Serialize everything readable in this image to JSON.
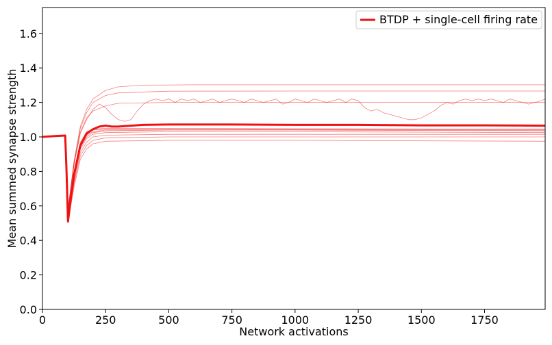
{
  "chart_data": {
    "type": "line",
    "xlabel": "Network activations",
    "ylabel": "Mean summed synapse strength",
    "xlim": [
      0,
      1990
    ],
    "ylim": [
      0.0,
      1.75
    ],
    "xticks": [
      0,
      250,
      500,
      750,
      1000,
      1250,
      1500,
      1750
    ],
    "xtick_labels": [
      "0",
      "250",
      "500",
      "750",
      "1000",
      "1250",
      "1500",
      "1750"
    ],
    "yticks": [
      0.0,
      0.2,
      0.4,
      0.6,
      0.8,
      1.0,
      1.2,
      1.4,
      1.6
    ],
    "ytick_labels": [
      "0.0",
      "0.2",
      "0.4",
      "0.6",
      "0.8",
      "1.0",
      "1.2",
      "1.4",
      "1.6"
    ],
    "grid": false,
    "legend": {
      "position": "top-right",
      "entries": [
        "BTDP + single-cell firing rate"
      ]
    },
    "color": "#ee1111",
    "series": [
      {
        "name": "BTDP + single-cell firing rate",
        "role": "mean",
        "points": [
          [
            0,
            1.0
          ],
          [
            50,
            1.005
          ],
          [
            90,
            1.008
          ],
          [
            95,
            0.82
          ],
          [
            101,
            0.51
          ],
          [
            110,
            0.62
          ],
          [
            125,
            0.78
          ],
          [
            150,
            0.95
          ],
          [
            175,
            1.02
          ],
          [
            200,
            1.045
          ],
          [
            225,
            1.06
          ],
          [
            250,
            1.065
          ],
          [
            275,
            1.06
          ],
          [
            300,
            1.06
          ],
          [
            350,
            1.065
          ],
          [
            400,
            1.07
          ],
          [
            500,
            1.072
          ],
          [
            750,
            1.072
          ],
          [
            1000,
            1.07
          ],
          [
            1250,
            1.07
          ],
          [
            1500,
            1.067
          ],
          [
            1750,
            1.067
          ],
          [
            1990,
            1.065
          ]
        ]
      },
      {
        "role": "trial",
        "points": [
          [
            0,
            1.0
          ],
          [
            90,
            1.008
          ],
          [
            101,
            0.58
          ],
          [
            125,
            0.86
          ],
          [
            150,
            1.06
          ],
          [
            175,
            1.16
          ],
          [
            200,
            1.22
          ],
          [
            250,
            1.27
          ],
          [
            300,
            1.29
          ],
          [
            400,
            1.3
          ],
          [
            600,
            1.302
          ],
          [
            1000,
            1.302
          ],
          [
            1500,
            1.302
          ],
          [
            1990,
            1.302
          ]
        ]
      },
      {
        "role": "trial",
        "points": [
          [
            0,
            1.0
          ],
          [
            90,
            1.008
          ],
          [
            101,
            0.58
          ],
          [
            125,
            0.85
          ],
          [
            150,
            1.05
          ],
          [
            175,
            1.14
          ],
          [
            200,
            1.2
          ],
          [
            250,
            1.24
          ],
          [
            300,
            1.255
          ],
          [
            500,
            1.265
          ],
          [
            1000,
            1.266
          ],
          [
            1990,
            1.266
          ]
        ]
      },
      {
        "role": "trial",
        "points": [
          [
            0,
            1.0
          ],
          [
            90,
            1.008
          ],
          [
            101,
            0.57
          ],
          [
            125,
            0.84
          ],
          [
            150,
            1.03
          ],
          [
            175,
            1.11
          ],
          [
            200,
            1.15
          ],
          [
            250,
            1.18
          ],
          [
            300,
            1.195
          ],
          [
            500,
            1.2
          ],
          [
            1000,
            1.2
          ],
          [
            1990,
            1.2
          ]
        ]
      },
      {
        "role": "trial",
        "points": [
          [
            0,
            1.0
          ],
          [
            90,
            1.008
          ],
          [
            101,
            0.57
          ],
          [
            125,
            0.84
          ],
          [
            150,
            1.02
          ],
          [
            175,
            1.1
          ],
          [
            200,
            1.16
          ],
          [
            225,
            1.19
          ],
          [
            250,
            1.17
          ],
          [
            275,
            1.13
          ],
          [
            300,
            1.1
          ],
          [
            325,
            1.09
          ],
          [
            350,
            1.1
          ],
          [
            375,
            1.15
          ],
          [
            400,
            1.19
          ],
          [
            425,
            1.21
          ],
          [
            450,
            1.22
          ],
          [
            475,
            1.21
          ],
          [
            500,
            1.22
          ],
          [
            525,
            1.2
          ],
          [
            550,
            1.22
          ],
          [
            575,
            1.21
          ],
          [
            600,
            1.22
          ],
          [
            625,
            1.2
          ],
          [
            650,
            1.21
          ],
          [
            675,
            1.22
          ],
          [
            700,
            1.2
          ],
          [
            725,
            1.21
          ],
          [
            750,
            1.22
          ],
          [
            775,
            1.21
          ],
          [
            800,
            1.2
          ],
          [
            825,
            1.22
          ],
          [
            850,
            1.21
          ],
          [
            875,
            1.2
          ],
          [
            900,
            1.21
          ],
          [
            925,
            1.22
          ],
          [
            950,
            1.19
          ],
          [
            975,
            1.2
          ],
          [
            1000,
            1.22
          ],
          [
            1025,
            1.21
          ],
          [
            1050,
            1.2
          ],
          [
            1075,
            1.22
          ],
          [
            1100,
            1.21
          ],
          [
            1125,
            1.2
          ],
          [
            1150,
            1.21
          ],
          [
            1175,
            1.22
          ],
          [
            1200,
            1.2
          ],
          [
            1225,
            1.22
          ],
          [
            1250,
            1.21
          ],
          [
            1275,
            1.17
          ],
          [
            1300,
            1.15
          ],
          [
            1325,
            1.16
          ],
          [
            1350,
            1.14
          ],
          [
            1375,
            1.13
          ],
          [
            1400,
            1.12
          ],
          [
            1425,
            1.11
          ],
          [
            1450,
            1.1
          ],
          [
            1475,
            1.1
          ],
          [
            1500,
            1.11
          ],
          [
            1525,
            1.13
          ],
          [
            1550,
            1.15
          ],
          [
            1575,
            1.18
          ],
          [
            1600,
            1.2
          ],
          [
            1625,
            1.19
          ],
          [
            1650,
            1.21
          ],
          [
            1675,
            1.22
          ],
          [
            1700,
            1.21
          ],
          [
            1725,
            1.22
          ],
          [
            1750,
            1.21
          ],
          [
            1775,
            1.22
          ],
          [
            1800,
            1.21
          ],
          [
            1825,
            1.2
          ],
          [
            1850,
            1.22
          ],
          [
            1875,
            1.21
          ],
          [
            1900,
            1.2
          ],
          [
            1925,
            1.19
          ],
          [
            1950,
            1.2
          ],
          [
            1975,
            1.21
          ],
          [
            1990,
            1.22
          ]
        ]
      },
      {
        "role": "trial",
        "points": [
          [
            0,
            1.0
          ],
          [
            90,
            1.008
          ],
          [
            101,
            0.54
          ],
          [
            125,
            0.8
          ],
          [
            150,
            0.97
          ],
          [
            175,
            1.03
          ],
          [
            200,
            1.045
          ],
          [
            250,
            1.05
          ],
          [
            400,
            1.05
          ],
          [
            1000,
            1.048
          ],
          [
            1990,
            1.045
          ]
        ]
      },
      {
        "role": "trial",
        "points": [
          [
            0,
            1.0
          ],
          [
            90,
            1.008
          ],
          [
            101,
            0.53
          ],
          [
            125,
            0.78
          ],
          [
            150,
            0.95
          ],
          [
            175,
            1.01
          ],
          [
            200,
            1.03
          ],
          [
            250,
            1.04
          ],
          [
            500,
            1.04
          ],
          [
            1000,
            1.04
          ],
          [
            1990,
            1.035
          ]
        ]
      },
      {
        "role": "trial",
        "points": [
          [
            0,
            1.0
          ],
          [
            90,
            1.008
          ],
          [
            101,
            0.52
          ],
          [
            125,
            0.76
          ],
          [
            150,
            0.93
          ],
          [
            175,
            0.99
          ],
          [
            200,
            1.015
          ],
          [
            250,
            1.025
          ],
          [
            500,
            1.03
          ],
          [
            1000,
            1.03
          ],
          [
            1990,
            1.025
          ]
        ]
      },
      {
        "role": "trial",
        "points": [
          [
            0,
            1.0
          ],
          [
            90,
            1.008
          ],
          [
            101,
            0.52
          ],
          [
            125,
            0.74
          ],
          [
            150,
            0.91
          ],
          [
            175,
            0.97
          ],
          [
            200,
            1.0
          ],
          [
            250,
            1.01
          ],
          [
            500,
            1.015
          ],
          [
            1000,
            1.015
          ],
          [
            1990,
            1.015
          ]
        ]
      },
      {
        "role": "trial",
        "points": [
          [
            0,
            1.0
          ],
          [
            90,
            1.008
          ],
          [
            101,
            0.51
          ],
          [
            125,
            0.73
          ],
          [
            150,
            0.89
          ],
          [
            175,
            0.95
          ],
          [
            200,
            0.98
          ],
          [
            250,
            0.995
          ],
          [
            500,
            1.0
          ],
          [
            1000,
            1.0
          ],
          [
            1990,
            1.0
          ]
        ]
      },
      {
        "role": "trial",
        "points": [
          [
            0,
            1.0
          ],
          [
            90,
            1.008
          ],
          [
            101,
            0.5
          ],
          [
            125,
            0.71
          ],
          [
            150,
            0.87
          ],
          [
            175,
            0.93
          ],
          [
            200,
            0.96
          ],
          [
            250,
            0.975
          ],
          [
            500,
            0.98
          ],
          [
            1000,
            0.98
          ],
          [
            1990,
            0.975
          ]
        ]
      },
      {
        "role": "trial",
        "points": [
          [
            0,
            1.0
          ],
          [
            90,
            1.008
          ],
          [
            101,
            0.52
          ],
          [
            125,
            0.77
          ],
          [
            150,
            0.94
          ],
          [
            175,
            1.0
          ],
          [
            200,
            1.025
          ],
          [
            250,
            1.035
          ],
          [
            500,
            1.04
          ],
          [
            1000,
            1.04
          ],
          [
            1990,
            1.04
          ]
        ]
      },
      {
        "role": "trial",
        "points": [
          [
            0,
            1.0
          ],
          [
            90,
            1.008
          ],
          [
            101,
            0.53
          ],
          [
            125,
            0.79
          ],
          [
            150,
            0.96
          ],
          [
            175,
            1.02
          ],
          [
            200,
            1.04
          ],
          [
            250,
            1.045
          ],
          [
            500,
            1.045
          ],
          [
            1000,
            1.043
          ],
          [
            1990,
            1.04
          ]
        ]
      }
    ]
  }
}
